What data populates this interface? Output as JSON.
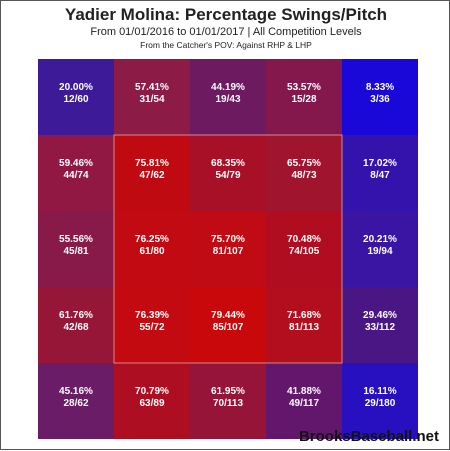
{
  "title": "Yadier Molina: Percentage Swings/Pitch",
  "subtitle": "From 01/01/2016 to 01/01/2017 | All Competition Levels",
  "subtitle2": "From the Catcher's POV:  Against RHP & LHP",
  "brand": "BrooksBaseball.net",
  "chart_data": {
    "type": "heatmap",
    "title": "Yadier Molina: Percentage Swings/Pitch",
    "rows": 5,
    "cols": 5,
    "strike_zone": "inner 3x3 cells",
    "cells": [
      [
        {
          "pct": "20.00%",
          "frac": "12/60",
          "value": 20.0,
          "color": "#3c1a98"
        },
        {
          "pct": "57.41%",
          "frac": "31/54",
          "value": 57.41,
          "color": "#8c1c46"
        },
        {
          "pct": "44.19%",
          "frac": "19/43",
          "value": 44.19,
          "color": "#6e1a60"
        },
        {
          "pct": "53.57%",
          "frac": "15/28",
          "value": 53.57,
          "color": "#84184c"
        },
        {
          "pct": "8.33%",
          "frac": "3/36",
          "value": 8.33,
          "color": "#1a08d8"
        }
      ],
      [
        {
          "pct": "59.46%",
          "frac": "44/74",
          "value": 59.46,
          "color": "#921844"
        },
        {
          "pct": "75.81%",
          "frac": "47/62",
          "value": 75.81,
          "color": "#c00a12"
        },
        {
          "pct": "68.35%",
          "frac": "54/79",
          "value": 68.35,
          "color": "#a81028"
        },
        {
          "pct": "65.75%",
          "frac": "48/73",
          "value": 65.75,
          "color": "#a0142e"
        },
        {
          "pct": "17.02%",
          "frac": "8/47",
          "value": 17.02,
          "color": "#3412ac"
        }
      ],
      [
        {
          "pct": "55.56%",
          "frac": "45/81",
          "value": 55.56,
          "color": "#881a4a"
        },
        {
          "pct": "76.25%",
          "frac": "61/80",
          "value": 76.25,
          "color": "#c20a12"
        },
        {
          "pct": "75.70%",
          "frac": "81/107",
          "value": 75.7,
          "color": "#c00a14"
        },
        {
          "pct": "70.48%",
          "frac": "74/105",
          "value": 70.48,
          "color": "#b00e20"
        },
        {
          "pct": "20.21%",
          "frac": "19/94",
          "value": 20.21,
          "color": "#3a14a2"
        }
      ],
      [
        {
          "pct": "61.76%",
          "frac": "42/68",
          "value": 61.76,
          "color": "#961638"
        },
        {
          "pct": "76.39%",
          "frac": "55/72",
          "value": 76.39,
          "color": "#c20a10"
        },
        {
          "pct": "79.44%",
          "frac": "85/107",
          "value": 79.44,
          "color": "#c8080a"
        },
        {
          "pct": "71.68%",
          "frac": "81/113",
          "value": 71.68,
          "color": "#b20e1e"
        },
        {
          "pct": "29.46%",
          "frac": "33/112",
          "value": 29.46,
          "color": "#4a1684"
        }
      ],
      [
        {
          "pct": "45.16%",
          "frac": "28/62",
          "value": 45.16,
          "color": "#6a1c66"
        },
        {
          "pct": "70.79%",
          "frac": "63/89",
          "value": 70.79,
          "color": "#ae0e22"
        },
        {
          "pct": "61.95%",
          "frac": "70/113",
          "value": 61.95,
          "color": "#961438"
        },
        {
          "pct": "41.88%",
          "frac": "49/117",
          "value": 41.88,
          "color": "#62166c"
        },
        {
          "pct": "16.11%",
          "frac": "29/180",
          "value": 16.11,
          "color": "#2810c0"
        }
      ]
    ]
  }
}
